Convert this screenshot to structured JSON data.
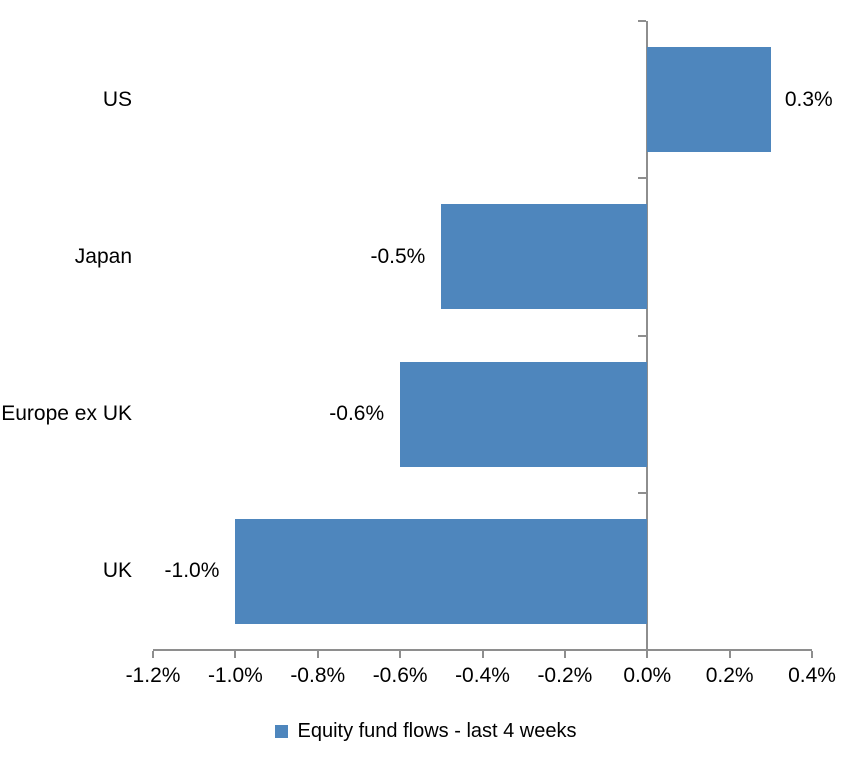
{
  "chart_data": {
    "type": "bar",
    "orientation": "horizontal",
    "title": "",
    "categories": [
      "US",
      "Japan",
      "Europe ex UK",
      "UK"
    ],
    "series": [
      {
        "name": "Equity fund flows - last 4 weeks",
        "values": [
          0.3,
          -0.5,
          -0.6,
          -1.0
        ],
        "value_labels": [
          "0.3%",
          "-0.5%",
          "-0.6%",
          "-1.0%"
        ]
      }
    ],
    "xlabel": "",
    "ylabel": "",
    "xlim": [
      -1.2,
      0.4
    ],
    "x_tick_values": [
      -1.2,
      -1.0,
      -0.8,
      -0.6,
      -0.4,
      -0.2,
      0.0,
      0.2,
      0.4
    ],
    "x_tick_labels": [
      "-1.2%",
      "-1.0%",
      "-0.8%",
      "-0.6%",
      "-0.4%",
      "-0.2%",
      "0.0%",
      "0.2%",
      "0.4%"
    ],
    "grid": false,
    "data_labels": "outside-end",
    "legend_position": "bottom",
    "legend_entries": [
      "Equity fund flows - last 4 weeks"
    ],
    "colors": {
      "bar": "#4E86BD",
      "axis": "#8E8E8E",
      "text": "#000000",
      "background": "#FFFFFF"
    }
  }
}
